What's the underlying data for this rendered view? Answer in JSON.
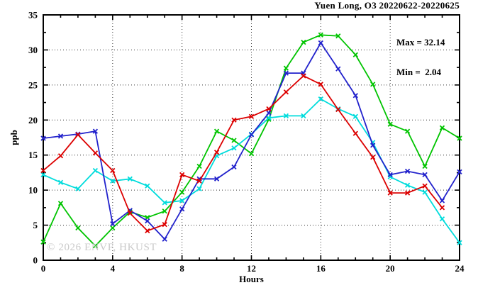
{
  "chart_data": {
    "type": "line",
    "title": "Yuen Long, O3 20220622-20220625",
    "xlabel": "Hours",
    "ylabel": "ppb",
    "xlim": [
      0,
      24
    ],
    "ylim": [
      0,
      35
    ],
    "x_ticks_major": [
      0,
      4,
      8,
      12,
      16,
      20,
      24
    ],
    "x_minor_step": 1,
    "y_ticks_major": [
      0,
      5,
      10,
      15,
      20,
      25,
      30,
      35
    ],
    "y_minor_step": 2.5,
    "grid": "dotted",
    "legend_position": "none",
    "marker": "x",
    "annotation": {
      "max_label": "Max = 32.14",
      "min_label": "Min =  2.04",
      "max": 32.14,
      "min": 2.04
    },
    "watermark": "© 2026 ENVF, HKUST",
    "x": [
      0,
      1,
      2,
      3,
      4,
      5,
      6,
      7,
      8,
      9,
      10,
      11,
      12,
      13,
      14,
      15,
      16,
      17,
      18,
      19,
      20,
      21,
      22,
      23,
      24
    ],
    "series": [
      {
        "name": "green-line",
        "color": "#00C400",
        "values": [
          2.6,
          8.1,
          4.6,
          2.04,
          4.6,
          6.9,
          6.1,
          7.0,
          9.7,
          13.4,
          18.4,
          17.1,
          15.2,
          20.1,
          27.4,
          31.1,
          32.14,
          32.0,
          29.3,
          25.1,
          19.4,
          18.4,
          13.4,
          18.9,
          17.4
        ]
      },
      {
        "name": "cyan-line",
        "color": "#00DCDC",
        "values": [
          12.2,
          11.1,
          10.2,
          12.8,
          11.3,
          11.6,
          10.6,
          8.2,
          8.5,
          10.2,
          14.9,
          16.0,
          18.0,
          20.3,
          20.6,
          20.6,
          23.0,
          21.6,
          20.5,
          16.8,
          11.9,
          10.7,
          9.7,
          5.9,
          2.5
        ]
      },
      {
        "name": "blue-line",
        "color": "#2222CC",
        "values": [
          17.4,
          17.7,
          18.0,
          18.4,
          5.2,
          7.1,
          5.6,
          3.0,
          7.3,
          11.6,
          11.6,
          13.3,
          17.9,
          21.0,
          26.7,
          26.7,
          31.0,
          27.3,
          23.5,
          16.4,
          12.2,
          12.7,
          12.2,
          8.5,
          12.6
        ]
      },
      {
        "name": "red-line",
        "color": "#DC0000",
        "values": [
          12.8,
          14.9,
          17.9,
          15.3,
          12.8,
          6.7,
          4.2,
          5.1,
          12.2,
          11.3,
          15.4,
          20.0,
          20.5,
          21.6,
          24.0,
          26.3,
          25.1,
          21.5,
          18.1,
          14.7,
          9.6,
          9.6,
          10.6,
          7.5
        ]
      }
    ]
  }
}
